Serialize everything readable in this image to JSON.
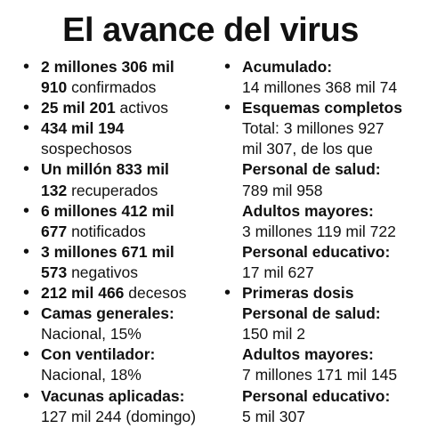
{
  "title": "El avance del virus",
  "left": {
    "l0b": "2 millones 306 mil",
    "l1b": "910",
    "l1t": " confirmados",
    "l2b": "25 mil 201",
    "l2t": " activos",
    "l3b": "434 mil 194",
    "l4t": "sospechosos",
    "l5b": "Un millón 833 mil",
    "l6b": "132",
    "l6t": " recuperados",
    "l7b": "6 millones 412 mil",
    "l8b": "677",
    "l8t": " notificados",
    "l9b": "3 millones 671 mil",
    "l10b": "573",
    "l10t": " negativos",
    "l11b": "212 mil 466",
    "l11t": " decesos",
    "l12b": "Camas generales:",
    "l13t": "Nacional, 15%",
    "l14b": "Con ventilador:",
    "l15t": "Nacional, 18%",
    "l16b": "Vacunas aplicadas:",
    "l17t": "127 mil 244 (domingo)"
  },
  "right": {
    "r0b": "Acumulado:",
    "r1t": "14 millones 368 mil 74",
    "r2b": "Esquemas completos",
    "r3t": "Total: 3 millones 927",
    "r4t": "mil 307, de los que",
    "r5b": "Personal de salud:",
    "r6t": "789 mil 958",
    "r7b": "Adultos mayores:",
    "r8t": "3 millones 119 mil 722",
    "r9b": "Personal educativo:",
    "r10t": "17 mil 627",
    "r11b": "Primeras dosis",
    "r12b": "Personal de salud:",
    "r13t": "150 mil 2",
    "r14b": "Adultos mayores:",
    "r15t": "7 millones 171 mil 145",
    "r16b": "Personal educativo:",
    "r17t": "5 mil 307"
  }
}
